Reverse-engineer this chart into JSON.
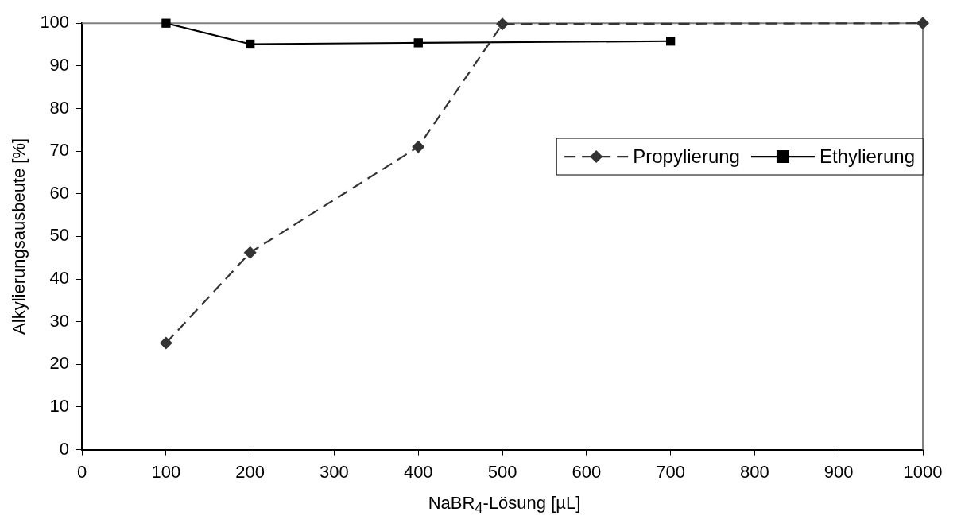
{
  "chart_data": {
    "type": "line",
    "xlabel": "NaBR$_{4}$-Lösung [µL]",
    "ylabel": "Alkylierungsausbeute [%]",
    "xlim": [
      0,
      1000
    ],
    "xticks": [
      0,
      100,
      200,
      300,
      400,
      500,
      600,
      700,
      800,
      900,
      1000
    ],
    "ylim": [
      0,
      100
    ],
    "yticks": [
      0,
      10,
      20,
      30,
      40,
      50,
      60,
      70,
      80,
      90,
      100
    ],
    "grid": false,
    "legend": "right",
    "series": [
      {
        "name": "Propylierung",
        "color": "#333333",
        "marker": "diamond",
        "line_style": "dashed",
        "x": [
          100,
          200,
          400,
          500,
          1000
        ],
        "values": [
          25,
          46.2,
          71,
          99.8,
          100
        ]
      },
      {
        "name": "Ethylierung",
        "color": "#000000",
        "marker": "square",
        "line_style": "solid",
        "x": [
          100,
          200,
          400,
          700
        ],
        "values": [
          100,
          95.1,
          95.4,
          95.8
        ]
      }
    ]
  }
}
